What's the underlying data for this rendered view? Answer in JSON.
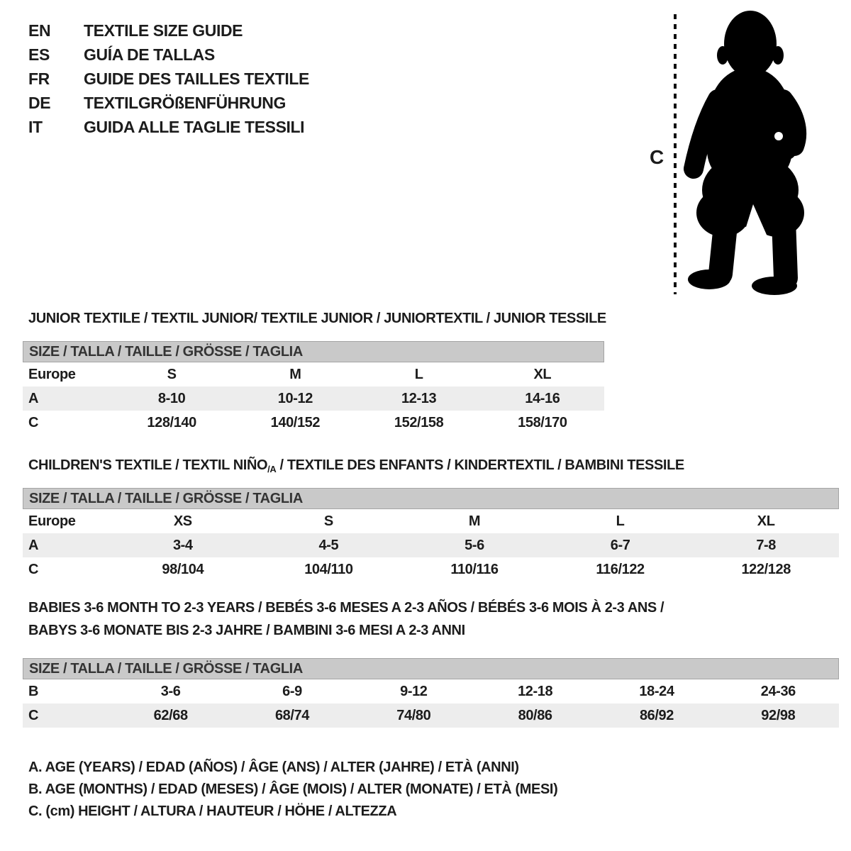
{
  "languages": [
    {
      "code": "EN",
      "label": "TEXTILE SIZE GUIDE"
    },
    {
      "code": "ES",
      "label": "GUÍA DE TALLAS"
    },
    {
      "code": "FR",
      "label": "GUIDE DES TAILLES TEXTILE"
    },
    {
      "code": "DE",
      "label": "TEXTILGRÖßENFÜHRUNG"
    },
    {
      "code": "IT",
      "label": "GUIDA ALLE TAGLIE TESSILI"
    }
  ],
  "figure": {
    "icon": "baby-silhouette-icon",
    "measure_label": "C",
    "silhouette_color": "#000000"
  },
  "sections": [
    {
      "id": "junior",
      "title_lines": [
        [
          {
            "t": "JUNIOR TEXTILE / TEXTIL JUNIOR/ TEXTILE JUNIOR / JUNIORTEXTIL / JUNIOR TESSILE"
          }
        ]
      ],
      "size_header": "SIZE / TALLA / TAILLE / GRÖSSE / TAGLIA",
      "rows": [
        {
          "label": "Europe",
          "cells": [
            "S",
            "M",
            "L",
            "XL"
          ]
        },
        {
          "label": "A",
          "cells": [
            "8-10",
            "10-12",
            "12-13",
            "14-16"
          ]
        },
        {
          "label": "C",
          "cells": [
            "128/140",
            "140/152",
            "152/158",
            "158/170"
          ]
        }
      ]
    },
    {
      "id": "children",
      "title_lines": [
        [
          {
            "t": "CHILDREN'S TEXTILE / TEXTIL NIÑO"
          },
          {
            "t": "/A",
            "sub": true
          },
          {
            "t": " / TEXTILE DES ENFANTS / KINDERTEXTIL / BAMBINI TESSILE"
          }
        ]
      ],
      "size_header": "SIZE / TALLA / TAILLE / GRÖSSE / TAGLIA",
      "rows": [
        {
          "label": "Europe",
          "cells": [
            "XS",
            "S",
            "M",
            "L",
            "XL"
          ]
        },
        {
          "label": "A",
          "cells": [
            "3-4",
            "4-5",
            "5-6",
            "6-7",
            "7-8"
          ]
        },
        {
          "label": "C",
          "cells": [
            "98/104",
            "104/110",
            "110/116",
            "116/122",
            "122/128"
          ]
        }
      ]
    },
    {
      "id": "babies",
      "title_lines": [
        [
          {
            "t": "BABIES 3-6 MONTH TO 2-3 YEARS / BEBÉS 3-6 MESES A 2-3 AÑOS / BÉBÉS 3-6 MOIS À 2-3 ANS /"
          }
        ],
        [
          {
            "t": "BABYS 3-6 MONATE BIS 2-3 JAHRE / BAMBINI 3-6 MESI A 2-3 ANNI"
          }
        ]
      ],
      "size_header": "SIZE / TALLA / TAILLE / GRÖSSE / TAGLIA",
      "rows": [
        {
          "label": "B",
          "cells": [
            "3-6",
            "6-9",
            "9-12",
            "12-18",
            "18-24",
            "24-36"
          ]
        },
        {
          "label": "C",
          "cells": [
            "62/68",
            "68/74",
            "74/80",
            "80/86",
            "86/92",
            "92/98"
          ]
        }
      ]
    }
  ],
  "legend": [
    "A. AGE (YEARS) / EDAD (AÑOS) / ÂGE (ANS) / ALTER (JAHRE) / ETÀ (ANNI)",
    "B. AGE (MONTHS) / EDAD (MESES) / ÂGE (MOIS) / ALTER (MONATE) / ETÀ (MESI)",
    "C. (cm) HEIGHT / ALTURA / HAUTEUR / HÖHE / ALTEZZA"
  ],
  "colors": {
    "header_bar": "#c9c9c9",
    "header_border": "#a4a4a4",
    "stripe": "#ededed",
    "text": "#1c1c1c"
  }
}
